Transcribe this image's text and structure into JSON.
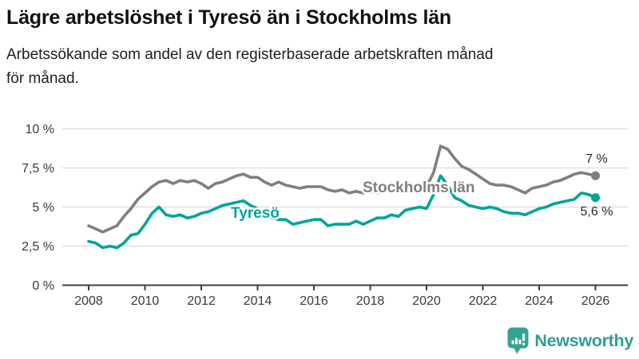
{
  "header": {
    "title": "Lägre arbetslöshet i Tyresö än i Stockholms län",
    "subtitle_lines": [
      "Arbetssökande som andel av den registerbaserade arbetskraften månad",
      "för månad."
    ]
  },
  "chart_data": {
    "type": "line",
    "title": "Lägre arbetslöshet i Tyresö än i Stockholms län",
    "subtitle": "Arbetssökande som andel av den registerbaserade arbetskraften månad för månad.",
    "unit": "%",
    "grid": true,
    "legend": "inline-labels",
    "ylim": [
      0,
      10
    ],
    "xlim": [
      2007.1,
      2027.1
    ],
    "y_axis": {
      "ticks": [
        {
          "v": 0,
          "label": "0 %"
        },
        {
          "v": 2.5,
          "label": "2,5 %"
        },
        {
          "v": 5,
          "label": "5 %"
        },
        {
          "v": 7.5,
          "label": "7,5 %"
        },
        {
          "v": 10,
          "label": "10 %"
        }
      ]
    },
    "x_axis": {
      "ticks": [
        {
          "v": 2008,
          "label": "2008"
        },
        {
          "v": 2010,
          "label": "2010"
        },
        {
          "v": 2012,
          "label": "2012"
        },
        {
          "v": 2014,
          "label": "2014"
        },
        {
          "v": 2016,
          "label": "2016"
        },
        {
          "v": 2018,
          "label": "2018"
        },
        {
          "v": 2020,
          "label": "2020"
        },
        {
          "v": 2022,
          "label": "2022"
        },
        {
          "v": 2024,
          "label": "2024"
        },
        {
          "v": 2026,
          "label": "2026"
        }
      ]
    },
    "x": [
      2008,
      2008.25,
      2008.5,
      2008.75,
      2009,
      2009.25,
      2009.5,
      2009.75,
      2010,
      2010.25,
      2010.5,
      2010.75,
      2011,
      2011.25,
      2011.5,
      2011.75,
      2012,
      2012.25,
      2012.5,
      2012.75,
      2013,
      2013.25,
      2013.5,
      2013.75,
      2014,
      2014.25,
      2014.5,
      2014.75,
      2015,
      2015.25,
      2015.5,
      2015.75,
      2016,
      2016.25,
      2016.5,
      2016.75,
      2017,
      2017.25,
      2017.5,
      2017.75,
      2018,
      2018.25,
      2018.5,
      2018.75,
      2019,
      2019.25,
      2019.5,
      2019.75,
      2020,
      2020.25,
      2020.5,
      2020.75,
      2021,
      2021.25,
      2021.5,
      2021.75,
      2022,
      2022.25,
      2022.5,
      2022.75,
      2023,
      2023.25,
      2023.5,
      2023.75,
      2024,
      2024.25,
      2024.5,
      2024.75,
      2025,
      2025.25,
      2025.5,
      2025.75,
      2026
    ],
    "series": [
      {
        "id": "stockholm",
        "name": "Stockholms län",
        "color": "#7f7f7f",
        "end_label": "7 %",
        "end_value": 7.0,
        "values": [
          3.8,
          3.6,
          3.4,
          3.6,
          3.8,
          4.4,
          4.9,
          5.5,
          5.9,
          6.3,
          6.6,
          6.7,
          6.5,
          6.7,
          6.6,
          6.7,
          6.5,
          6.2,
          6.5,
          6.6,
          6.8,
          7.0,
          7.1,
          6.9,
          6.9,
          6.6,
          6.4,
          6.6,
          6.4,
          6.3,
          6.2,
          6.3,
          6.3,
          6.3,
          6.1,
          6.0,
          6.1,
          5.9,
          6.0,
          5.9,
          6.0,
          5.9,
          6.0,
          6.1,
          6.1,
          6.2,
          6.2,
          6.3,
          6.3,
          7.2,
          8.9,
          8.7,
          8.1,
          7.6,
          7.4,
          7.1,
          6.8,
          6.5,
          6.4,
          6.4,
          6.3,
          6.1,
          5.9,
          6.2,
          6.3,
          6.4,
          6.6,
          6.7,
          6.9,
          7.1,
          7.2,
          7.1,
          7.0
        ]
      },
      {
        "id": "tyreso",
        "name": "Tyresö",
        "color": "#00a49a",
        "end_label": "5,6 %",
        "end_value": 5.6,
        "values": [
          2.8,
          2.7,
          2.4,
          2.5,
          2.4,
          2.7,
          3.2,
          3.3,
          3.9,
          4.6,
          5.0,
          4.5,
          4.4,
          4.5,
          4.3,
          4.4,
          4.6,
          4.7,
          4.9,
          5.1,
          5.2,
          5.3,
          5.4,
          5.1,
          4.9,
          4.6,
          4.3,
          4.2,
          4.2,
          3.9,
          4.0,
          4.1,
          4.2,
          4.2,
          3.8,
          3.9,
          3.9,
          3.9,
          4.1,
          3.9,
          4.1,
          4.3,
          4.3,
          4.5,
          4.4,
          4.8,
          4.9,
          5.0,
          4.9,
          5.8,
          7.0,
          6.4,
          5.6,
          5.4,
          5.1,
          5.0,
          4.9,
          5.0,
          4.9,
          4.7,
          4.6,
          4.6,
          4.5,
          4.7,
          4.9,
          5.0,
          5.2,
          5.3,
          5.4,
          5.5,
          5.9,
          5.8,
          5.6
        ]
      }
    ]
  },
  "footer": {
    "brand": "Newsworthy",
    "brand_color": "#2f9f90",
    "logo_icon": "newsworthy-pin-barchart-icon"
  }
}
